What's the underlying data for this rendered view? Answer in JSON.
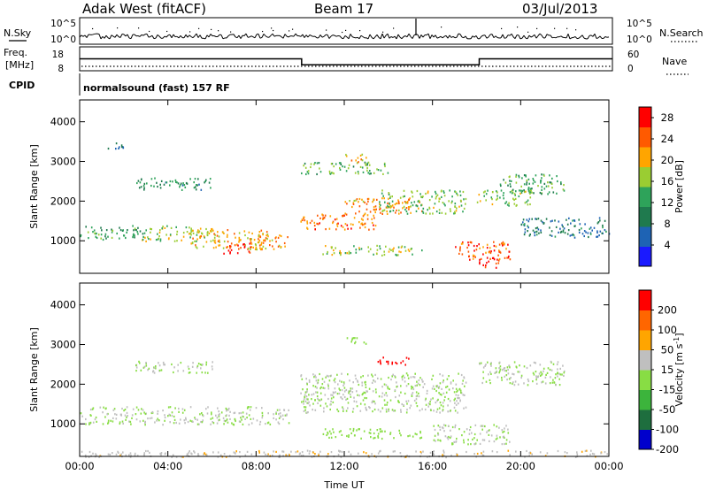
{
  "header": {
    "station": "Adak West (fitACF)",
    "beam": "Beam 17",
    "date": "03/Jul/2013"
  },
  "status_panels": {
    "nsky_label": "N.Sky",
    "nsearch_label": "N.Search",
    "noise_ticks": [
      "10^5",
      "10^0"
    ],
    "freq_label_line1": "Freq.",
    "freq_label_line2": "[MHz]",
    "freq_ticks": [
      "18",
      "8"
    ],
    "nave_label": "Nave",
    "nave_ticks": [
      "60",
      "0"
    ],
    "cpid_label": "CPID",
    "cpid_text": "normalsound (fast) 157 RF",
    "freq_series": {
      "name": "Freq.",
      "segments": [
        {
          "from_h": 0,
          "to_h": 10,
          "value_mhz": 13
        },
        {
          "from_h": 10,
          "to_h": 18,
          "value_mhz": 10.5
        },
        {
          "from_h": 18,
          "to_h": 24,
          "value_mhz": 13
        }
      ]
    }
  },
  "chart_data": [
    {
      "type": "heatmap",
      "title": "",
      "xlabel": "Time UT",
      "ylabel": "Slant Range [km]",
      "xlim_hours": [
        0,
        24
      ],
      "ylim_km": [
        180,
        4550
      ],
      "yticks": [
        "1000",
        "2000",
        "3000",
        "4000"
      ],
      "colorbar": {
        "label": "Power [dB]",
        "ticks": [
          "4",
          "8",
          "12",
          "16",
          "20",
          "24",
          "28"
        ],
        "range": [
          0,
          30
        ],
        "colors": [
          "#1a1aff",
          "#1e63b4",
          "#1f7a4e",
          "#2ea35a",
          "#9acd32",
          "#ffa500",
          "#ff5a00",
          "#ff0000"
        ]
      },
      "scatter_regions": [
        {
          "t0": 0.0,
          "t1": 3.0,
          "r0": 1050,
          "r1": 1400,
          "level": 12
        },
        {
          "t0": 2.8,
          "t1": 6.0,
          "r0": 1000,
          "r1": 1400,
          "level": 17
        },
        {
          "t0": 5.0,
          "t1": 8.5,
          "r0": 800,
          "r1": 1300,
          "level": 20
        },
        {
          "t0": 6.5,
          "t1": 7.8,
          "r0": 700,
          "r1": 1000,
          "level": 27
        },
        {
          "t0": 8.0,
          "t1": 9.5,
          "r0": 800,
          "r1": 1200,
          "level": 22
        },
        {
          "t0": 2.5,
          "t1": 6.0,
          "r0": 2300,
          "r1": 2600,
          "level": 11
        },
        {
          "t0": 1.2,
          "t1": 2.0,
          "r0": 3300,
          "r1": 3500,
          "level": 8
        },
        {
          "t0": 10.0,
          "t1": 13.5,
          "r0": 1300,
          "r1": 1700,
          "level": 23
        },
        {
          "t0": 12.0,
          "t1": 15.5,
          "r0": 1700,
          "r1": 2100,
          "level": 22
        },
        {
          "t0": 13.5,
          "t1": 17.5,
          "r0": 1700,
          "r1": 2300,
          "level": 16
        },
        {
          "t0": 11.0,
          "t1": 15.5,
          "r0": 650,
          "r1": 900,
          "level": 17
        },
        {
          "t0": 10.0,
          "t1": 14.0,
          "r0": 2700,
          "r1": 3000,
          "level": 14
        },
        {
          "t0": 12.0,
          "t1": 13.0,
          "r0": 3000,
          "r1": 3200,
          "level": 20
        },
        {
          "t0": 17.0,
          "t1": 19.5,
          "r0": 500,
          "r1": 1000,
          "level": 25
        },
        {
          "t0": 18.0,
          "t1": 19.0,
          "r0": 300,
          "r1": 600,
          "level": 28
        },
        {
          "t0": 18.0,
          "t1": 20.5,
          "r0": 1900,
          "r1": 2300,
          "level": 16
        },
        {
          "t0": 19.0,
          "t1": 22.0,
          "r0": 2200,
          "r1": 2700,
          "level": 13
        },
        {
          "t0": 20.0,
          "t1": 24.0,
          "r0": 1100,
          "r1": 1600,
          "level": 8
        }
      ]
    },
    {
      "type": "heatmap",
      "title": "",
      "xlabel": "Time UT",
      "ylabel": "Slant Range [km]",
      "xlim_hours": [
        0,
        24
      ],
      "ylim_km": [
        180,
        4550
      ],
      "xticks": [
        "00:00",
        "04:00",
        "08:00",
        "12:00",
        "16:00",
        "20:00",
        "00:00"
      ],
      "yticks": [
        "1000",
        "2000",
        "3000",
        "4000"
      ],
      "colorbar": {
        "label": "Velocity [m s",
        "label_superscript": "-1",
        "label_close": "]",
        "ticks": [
          "200",
          "100",
          "50",
          "15",
          "-15",
          "-50",
          "-100",
          "-200"
        ],
        "range": [
          -250,
          250
        ],
        "colors": [
          "#0000cc",
          "#1e6e3e",
          "#3cb43c",
          "#88dd44",
          "#bfbfbf",
          "#ffa500",
          "#ff6600",
          "#ff0000"
        ]
      },
      "scatter_regions": [
        {
          "t0": 0.0,
          "t1": 9.5,
          "r0": 1000,
          "r1": 1450,
          "level": 0
        },
        {
          "t0": 2.5,
          "t1": 6.0,
          "r0": 2300,
          "r1": 2600,
          "level": 0
        },
        {
          "t0": 10.0,
          "t1": 17.5,
          "r0": 1300,
          "r1": 2300,
          "level": 0
        },
        {
          "t0": 11.0,
          "t1": 15.5,
          "r0": 650,
          "r1": 900,
          "level": -40
        },
        {
          "t0": 13.5,
          "t1": 15.0,
          "r0": 2500,
          "r1": 2700,
          "level": 200
        },
        {
          "t0": 12.0,
          "t1": 13.0,
          "r0": 3000,
          "r1": 3200,
          "level": -30
        },
        {
          "t0": 16.0,
          "t1": 19.5,
          "r0": 500,
          "r1": 1000,
          "level": 0
        },
        {
          "t0": 18.0,
          "t1": 22.0,
          "r0": 2000,
          "r1": 2600,
          "level": 0
        },
        {
          "t0": 0.0,
          "t1": 24.0,
          "r0": 180,
          "r1": 350,
          "level": 60
        }
      ]
    }
  ],
  "colors": {
    "axis": "#000000",
    "background": "#ffffff"
  }
}
